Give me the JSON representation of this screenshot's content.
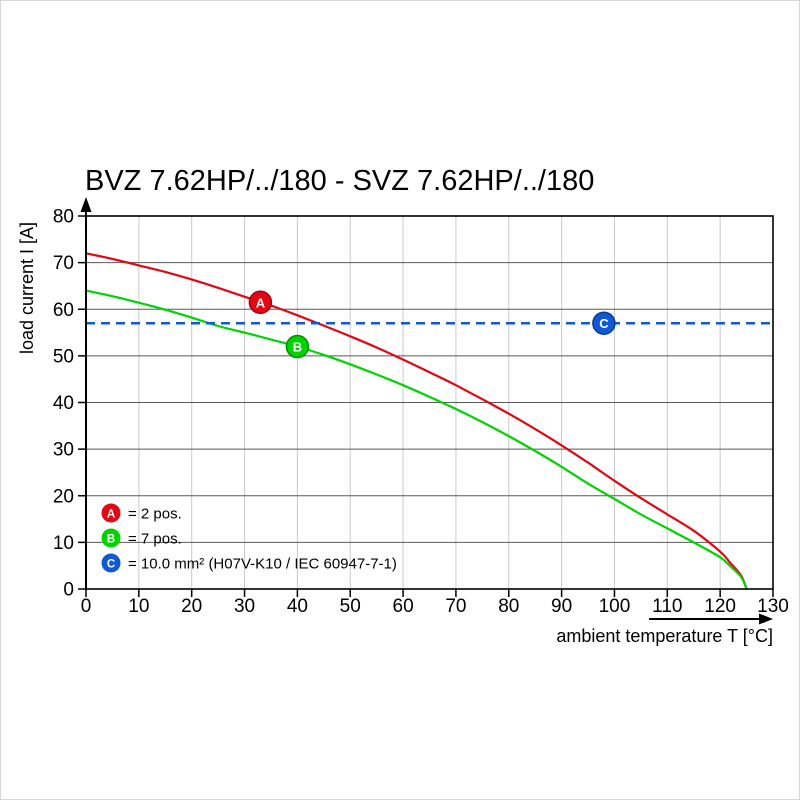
{
  "page": {
    "background": "#ffffff"
  },
  "chart_data": {
    "type": "line",
    "title": "BVZ 7.62HP/../180 - SVZ 7.62HP/../180",
    "xlabel": "ambient temperature T [°C]",
    "ylabel": "load current I [A]",
    "xlim": [
      0,
      130
    ],
    "ylim": [
      0,
      80
    ],
    "xticks": [
      0,
      10,
      20,
      30,
      40,
      50,
      60,
      70,
      80,
      90,
      100,
      110,
      120,
      130
    ],
    "yticks": [
      0,
      10,
      20,
      30,
      40,
      50,
      60,
      70,
      80
    ],
    "grid": {
      "horizontal": true,
      "vertical": true
    },
    "legend_position": "lower-left",
    "series": [
      {
        "id": "A",
        "legend_label": "= 2 pos.",
        "color": "#e30613",
        "ring": "#9c0410",
        "style": "solid",
        "marker": {
          "x": 33,
          "y": 61.5
        },
        "points": [
          [
            0,
            72
          ],
          [
            5,
            70.8
          ],
          [
            10,
            69.4
          ],
          [
            15,
            68
          ],
          [
            20,
            66.4
          ],
          [
            25,
            64.6
          ],
          [
            30,
            62.7
          ],
          [
            35,
            60.8
          ],
          [
            40,
            58.7
          ],
          [
            45,
            56.5
          ],
          [
            50,
            54.2
          ],
          [
            55,
            51.8
          ],
          [
            60,
            49.2
          ],
          [
            65,
            46.5
          ],
          [
            70,
            43.7
          ],
          [
            75,
            40.7
          ],
          [
            80,
            37.6
          ],
          [
            85,
            34.3
          ],
          [
            90,
            30.8
          ],
          [
            95,
            27.1
          ],
          [
            100,
            23.2
          ],
          [
            105,
            19.5
          ],
          [
            110,
            16
          ],
          [
            115,
            12.5
          ],
          [
            120,
            8
          ],
          [
            122,
            5.5
          ],
          [
            124,
            2.8
          ],
          [
            125,
            0
          ]
        ]
      },
      {
        "id": "B",
        "legend_label": "= 7 pos.",
        "color": "#00d400",
        "ring": "#008f00",
        "style": "solid",
        "marker": {
          "x": 40,
          "y": 52
        },
        "points": [
          [
            0,
            64
          ],
          [
            5,
            62.8
          ],
          [
            10,
            61.4
          ],
          [
            15,
            59.9
          ],
          [
            20,
            58.2
          ],
          [
            25,
            56.4
          ],
          [
            30,
            55
          ],
          [
            35,
            53.5
          ],
          [
            40,
            52
          ],
          [
            45,
            50.2
          ],
          [
            50,
            48.2
          ],
          [
            55,
            46
          ],
          [
            60,
            43.7
          ],
          [
            65,
            41.2
          ],
          [
            70,
            38.6
          ],
          [
            75,
            35.8
          ],
          [
            80,
            32.8
          ],
          [
            85,
            29.6
          ],
          [
            90,
            26.2
          ],
          [
            95,
            22.6
          ],
          [
            100,
            19.3
          ],
          [
            105,
            16
          ],
          [
            110,
            13
          ],
          [
            115,
            10
          ],
          [
            120,
            6.8
          ],
          [
            122,
            4.8
          ],
          [
            124,
            2.5
          ],
          [
            125,
            0
          ]
        ]
      },
      {
        "id": "C",
        "legend_label": "= 10.0 mm² (H07V-K10 / IEC 60947-7-1)",
        "color": "#1158d4",
        "ring": "#0a3c92",
        "style": "dashed",
        "y": 57,
        "marker": {
          "x": 98,
          "y": 57
        }
      }
    ]
  }
}
